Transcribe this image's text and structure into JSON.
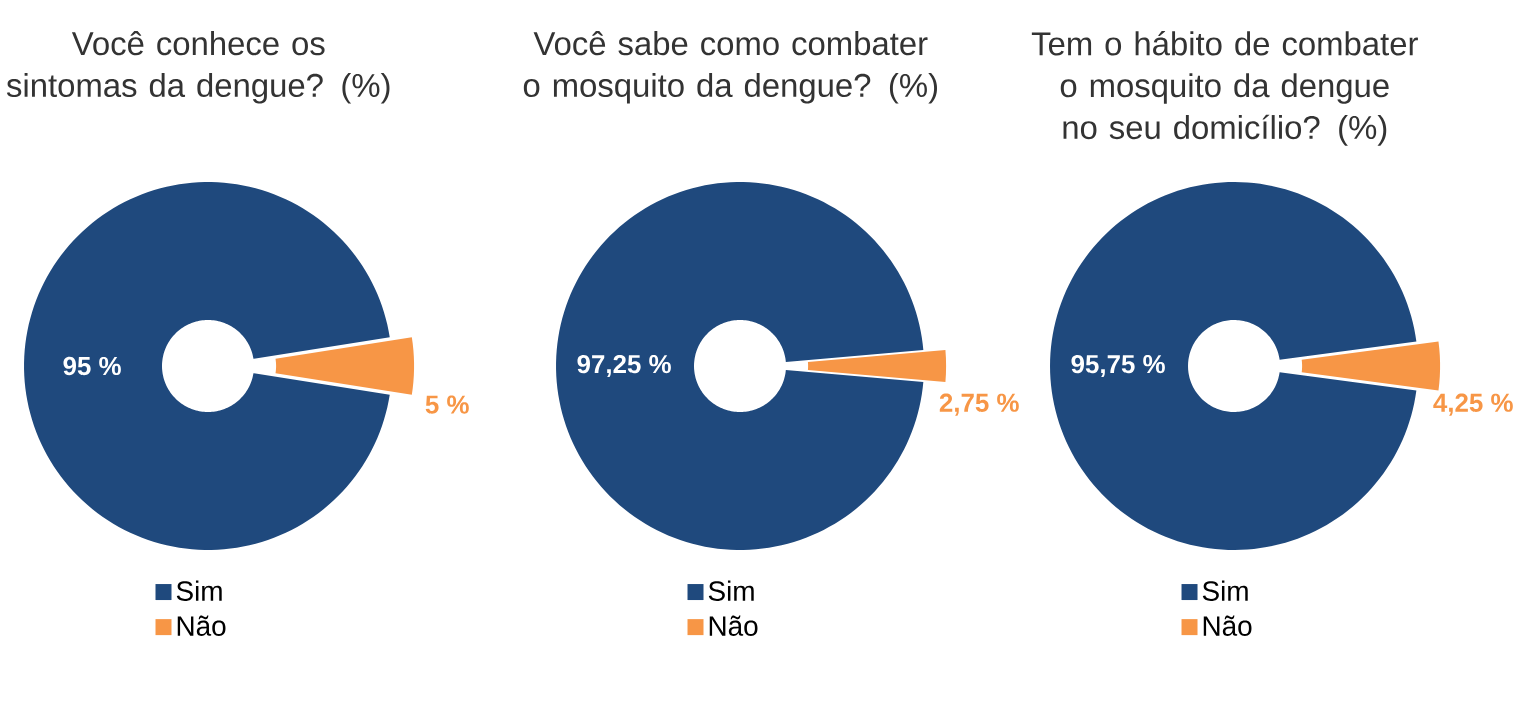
{
  "chart_data": [
    {
      "type": "donut",
      "title": "Você conhece os sintomas da dengue? (%)",
      "categories": [
        "Sim",
        "Não"
      ],
      "values": [
        95,
        5
      ],
      "colors": [
        "#1f497d",
        "#f79646"
      ],
      "value_labels": [
        "95 %",
        "5 %"
      ],
      "legend": "bottom"
    },
    {
      "type": "donut",
      "title": "Você sabe como combater o mosquito da dengue? (%)",
      "categories": [
        "Sim",
        "Não"
      ],
      "values": [
        97.25,
        2.75
      ],
      "colors": [
        "#1f497d",
        "#f79646"
      ],
      "value_labels": [
        "97,25 %",
        "2,75 %"
      ],
      "legend": "bottom"
    },
    {
      "type": "donut",
      "title": "Tem o hábito de combater o mosquito da dengue no seu domicílio? (%)",
      "categories": [
        "Sim",
        "Não"
      ],
      "values": [
        95.75,
        4.25
      ],
      "colors": [
        "#1f497d",
        "#f79646"
      ],
      "value_labels": [
        "95,75 %",
        "4,25 %"
      ],
      "legend": "bottom"
    }
  ]
}
